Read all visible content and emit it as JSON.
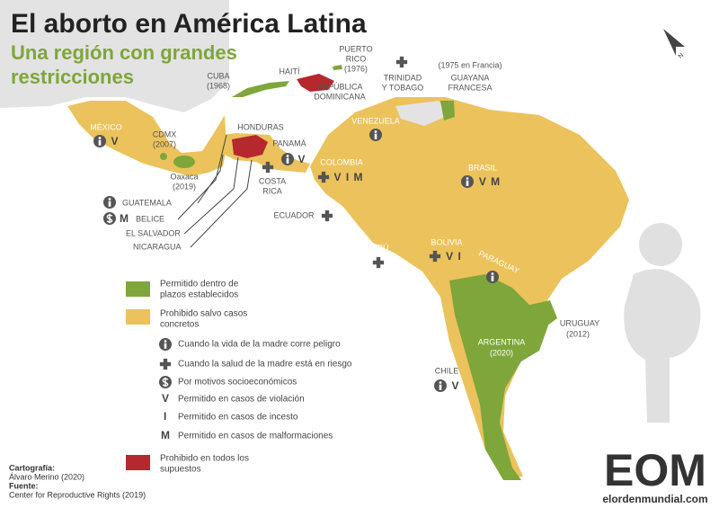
{
  "header": {
    "title": "El aborto en América Latina",
    "subtitle": [
      "Una región con grandes",
      "restricciones"
    ]
  },
  "compass": "N",
  "map": {
    "labels": [
      "MÉXICO",
      "CDMX",
      "(2007)",
      "Oaxaca",
      "(2019)",
      "CUBA",
      "(1968)",
      "HAITÍ",
      "PUERTO",
      "RICO",
      "(1976)",
      "REPÚBLICA",
      "DOMINICANA",
      "TRINIDAD",
      "Y TOBAGO",
      "(1975 en Francia)",
      "GUAYANA",
      "FRANCESA",
      "HONDURAS",
      "PANAMÁ",
      "COSTA",
      "RICA",
      "VENEZUELA",
      "COLOMBIA",
      "ECUADOR",
      "BRASIL",
      "PERÚ",
      "BOLIVIA",
      "PARAGUAY",
      "URUGUAY",
      "(2012)",
      "ARGENTINA",
      "(2020)",
      "CHILE",
      "GUATEMALA",
      "BELICE",
      "EL SALVADOR",
      "NICARAGUA"
    ],
    "codes": [
      "V",
      "V",
      "V I M",
      "V M",
      "M",
      "V I",
      "V"
    ]
  },
  "legend": {
    "areas": [
      [
        "Permitido dentro de",
        "plazos establecidos"
      ],
      [
        "Prohibido salvo casos",
        "concretos"
      ],
      [
        "Prohibido en todos los",
        "supuestos"
      ]
    ],
    "symbols": [
      "Cuando la vida de la madre corre peligro",
      "Cuando la salud de la madre está en riesgo",
      "Por motivos socioeconómicos",
      "Permitido en casos de violación",
      "Permitido en casos de incesto",
      "Permitido en casos de malformaciones"
    ],
    "symbol_keys": [
      "V",
      "I",
      "M"
    ]
  },
  "credits": {
    "cartography_label": "Cartografía:",
    "cartography": "Álvaro Merino (2020)",
    "source_label": "Fuente:",
    "source": "Center for Reproductive Rights (2019)"
  },
  "logo": {
    "mark": "EOM",
    "url": "elordenmundial.com"
  }
}
